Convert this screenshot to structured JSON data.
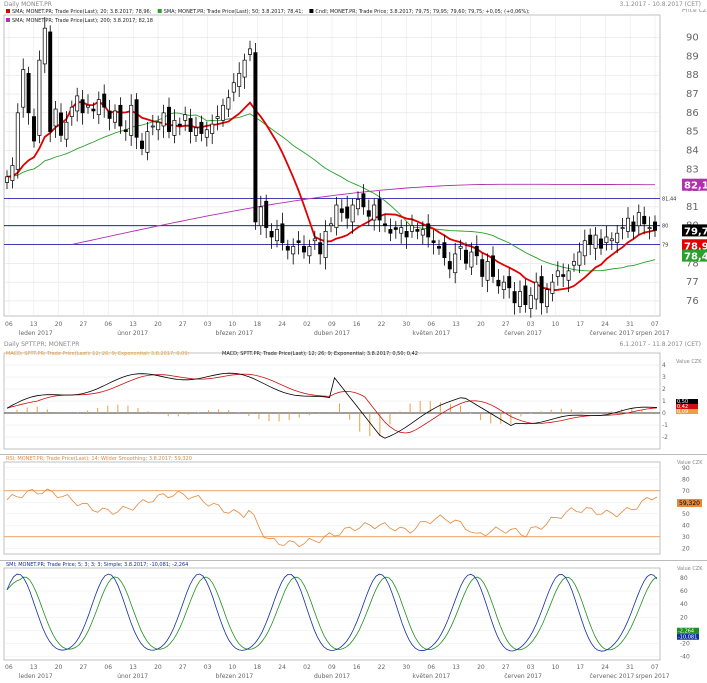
{
  "header": {
    "title": "Daily MONET.PR",
    "range": "3.1.2017 - 10.8.2017 (CET)"
  },
  "colors": {
    "up": "#ffffff",
    "down": "#000000",
    "sma20": "#e00000",
    "sma50": "#2aa02a",
    "sma200": "#b030b0",
    "blue": "#0000a0",
    "orange": "#e8883a",
    "macd": "#000000",
    "signal": "#d01010",
    "hist": "#e8a040",
    "smi": "#1030a0",
    "smi_sig": "#1f8f1f"
  },
  "main": {
    "legend": [
      {
        "text": "SMA; MONET.PR; Trade Price(Last); 20; 3.8.2017; 78,96;",
        "color": "#e00000"
      },
      {
        "text": "SMA; MONET.PR; Trade Price(Last); 50; 3.8.2017; 78,41;",
        "color": "#2aa02a"
      },
      {
        "text": "Cndl; MONET.PR; Trade Price; 3.8.2017; 79,75; 79,95; 79,60; 79,75; +0,05; (+0,06%);",
        "color": "#000000"
      },
      {
        "text": "SMA; MONET.PR; Trade Price(Last); 200; 3.8.2017; 82,18",
        "color": "#b030b0"
      }
    ],
    "axis_unit": "Price CZK",
    "tags": [
      {
        "label": "82,18",
        "value": 82.18,
        "bg": "#b030b0",
        "fg": "#ffffff"
      },
      {
        "label": "81,44",
        "value": 81.44,
        "bg": "none",
        "fg": "#333333"
      },
      {
        "label": "80",
        "value": 80.0,
        "bg": "none",
        "fg": "#333333"
      },
      {
        "label": "79,75",
        "value": 79.75,
        "bg": "#000000",
        "fg": "#ffffff"
      },
      {
        "label": "79",
        "value": 79.0,
        "bg": "none",
        "fg": "#333333"
      },
      {
        "label": "78,96",
        "value": 78.96,
        "bg": "#e00000",
        "fg": "#ffffff"
      },
      {
        "label": "78,41",
        "value": 78.41,
        "bg": "#2aa02a",
        "fg": "#ffffff"
      }
    ]
  },
  "macd_panel": {
    "legend": "MACD; SPTT.PR; Trade Price(Last); 12; 26; 9; Exponential; 3.8.2017; 0,09;",
    "legend2": "MACD; SPTT.PR; Trade Price(Last); 12; 26; 9; Exponential; 3.8.2017; 0,50; 0,42",
    "title": "Daily SPTT.PR; MONET.PR",
    "range": "6.1.2017 - 11.8.2017 (CET)",
    "axis_unit": "Value CZK",
    "tags": [
      {
        "label": "0,50",
        "bg": "#000000"
      },
      {
        "label": "0,42",
        "bg": "#d01010"
      },
      {
        "label": "0,09",
        "bg": "#e8a040"
      }
    ]
  },
  "rsi_panel": {
    "legend": "RSI; MONET.PR; Trade Price(Last); 14; Wilder Smoothing; 3.8.2017; 59,320",
    "axis_unit": "Value CZK",
    "tag": "59,320"
  },
  "smi_panel": {
    "legend": "SMI; MONET.PR; Trade Price; 5; 3; 3; 3; Simple; 3.8.2017; -10,081; -2,264",
    "axis_unit": "Value CZK",
    "tags": [
      {
        "label": "-2,264",
        "bg": "#1f8f1f"
      },
      {
        "label": "-10,081",
        "bg": "#1030a0"
      }
    ]
  },
  "xaxis": {
    "days": [
      "06",
      "13",
      "20",
      "27",
      "06",
      "13",
      "20",
      "27",
      "03",
      "10",
      "18",
      "24",
      "02",
      "09",
      "16",
      "22",
      "30",
      "06",
      "13",
      "20",
      "27",
      "03",
      "10",
      "17",
      "24",
      "31",
      "07"
    ],
    "months": [
      "leden 2017",
      "únor 2017",
      "březen 2017",
      "duben 2017",
      "květen 2017",
      "červen 2017",
      "červenec 2017",
      "srpen 2017"
    ]
  },
  "chart_data": [
    {
      "type": "candlestick",
      "title": "Daily MONET.PR",
      "ylabel": "Price CZK",
      "ylim": [
        75.2,
        91.2
      ],
      "yticks": [
        76,
        77,
        78,
        79,
        80,
        81,
        82,
        83,
        84,
        85,
        86,
        87,
        88,
        89,
        90
      ],
      "hlines": [
        81.44,
        80.0,
        79.0
      ],
      "close": [
        82.6,
        83.2,
        86.0,
        88.3,
        86.0,
        84.5,
        88.8,
        90.5,
        85.0,
        86.2,
        84.8,
        85.5,
        86.3,
        86.9,
        86.0,
        86.4,
        86.1,
        86.7,
        86.3,
        85.7,
        86.1,
        85.3,
        85.0,
        86.4,
        84.7,
        84.1,
        85.0,
        85.3,
        85.5,
        86.0,
        85.0,
        85.6,
        85.3,
        85.9,
        85.0,
        85.2,
        84.9,
        85.1,
        85.4,
        85.8,
        86.4,
        86.8,
        87.6,
        88.1,
        88.8,
        89.4,
        80.2,
        81.0,
        79.9,
        79.4,
        79.8,
        79.1,
        78.7,
        78.9,
        79.1,
        78.6,
        78.9,
        79.3,
        78.5,
        79.7,
        80.1,
        81.1,
        80.7,
        80.4,
        81.1,
        81.4,
        81.0,
        80.5,
        81.1,
        80.3,
        80.0,
        79.6,
        79.8,
        79.9,
        79.4,
        80.0,
        79.7,
        79.8,
        79.4,
        79.1,
        78.8,
        78.3,
        77.7,
        78.5,
        78.9,
        78.0,
        78.6,
        78.4,
        77.3,
        78.1,
        77.3,
        76.8,
        77.0,
        76.7,
        75.9,
        76.5,
        75.8,
        76.3,
        77.0,
        75.9,
        76.6,
        77.0,
        77.6,
        77.3,
        77.6,
        78.1,
        78.6,
        79.2,
        79.0,
        79.5,
        78.8,
        79.4,
        79.3,
        79.6,
        79.9,
        80.4,
        79.7,
        80.7,
        80.1,
        79.9,
        79.75
      ],
      "sma20_last": 78.96,
      "sma50_last": 78.41,
      "sma200_last": 82.18
    },
    {
      "type": "line",
      "title": "MACD 12 26 9",
      "ylim": [
        -3,
        5
      ],
      "yticks": [
        -2,
        -1,
        0,
        1,
        2,
        3,
        4
      ],
      "series": [
        {
          "name": "MACD",
          "last": 0.5
        },
        {
          "name": "Signal",
          "last": 0.42
        },
        {
          "name": "Histogram",
          "last": 0.09
        }
      ]
    },
    {
      "type": "line",
      "title": "RSI 14",
      "ylim": [
        15,
        95
      ],
      "yticks": [
        20,
        30,
        40,
        50,
        60,
        70,
        80,
        90
      ],
      "levels": [
        70,
        30
      ],
      "last": 59.32
    },
    {
      "type": "line",
      "title": "SMI 5 3 3 3",
      "ylim": [
        -45,
        95
      ],
      "yticks": [
        -40,
        -20,
        0,
        20,
        40,
        60,
        80
      ],
      "series": [
        {
          "name": "SMI",
          "last": -10.081
        },
        {
          "name": "Signal",
          "last": -2.264
        }
      ]
    }
  ]
}
